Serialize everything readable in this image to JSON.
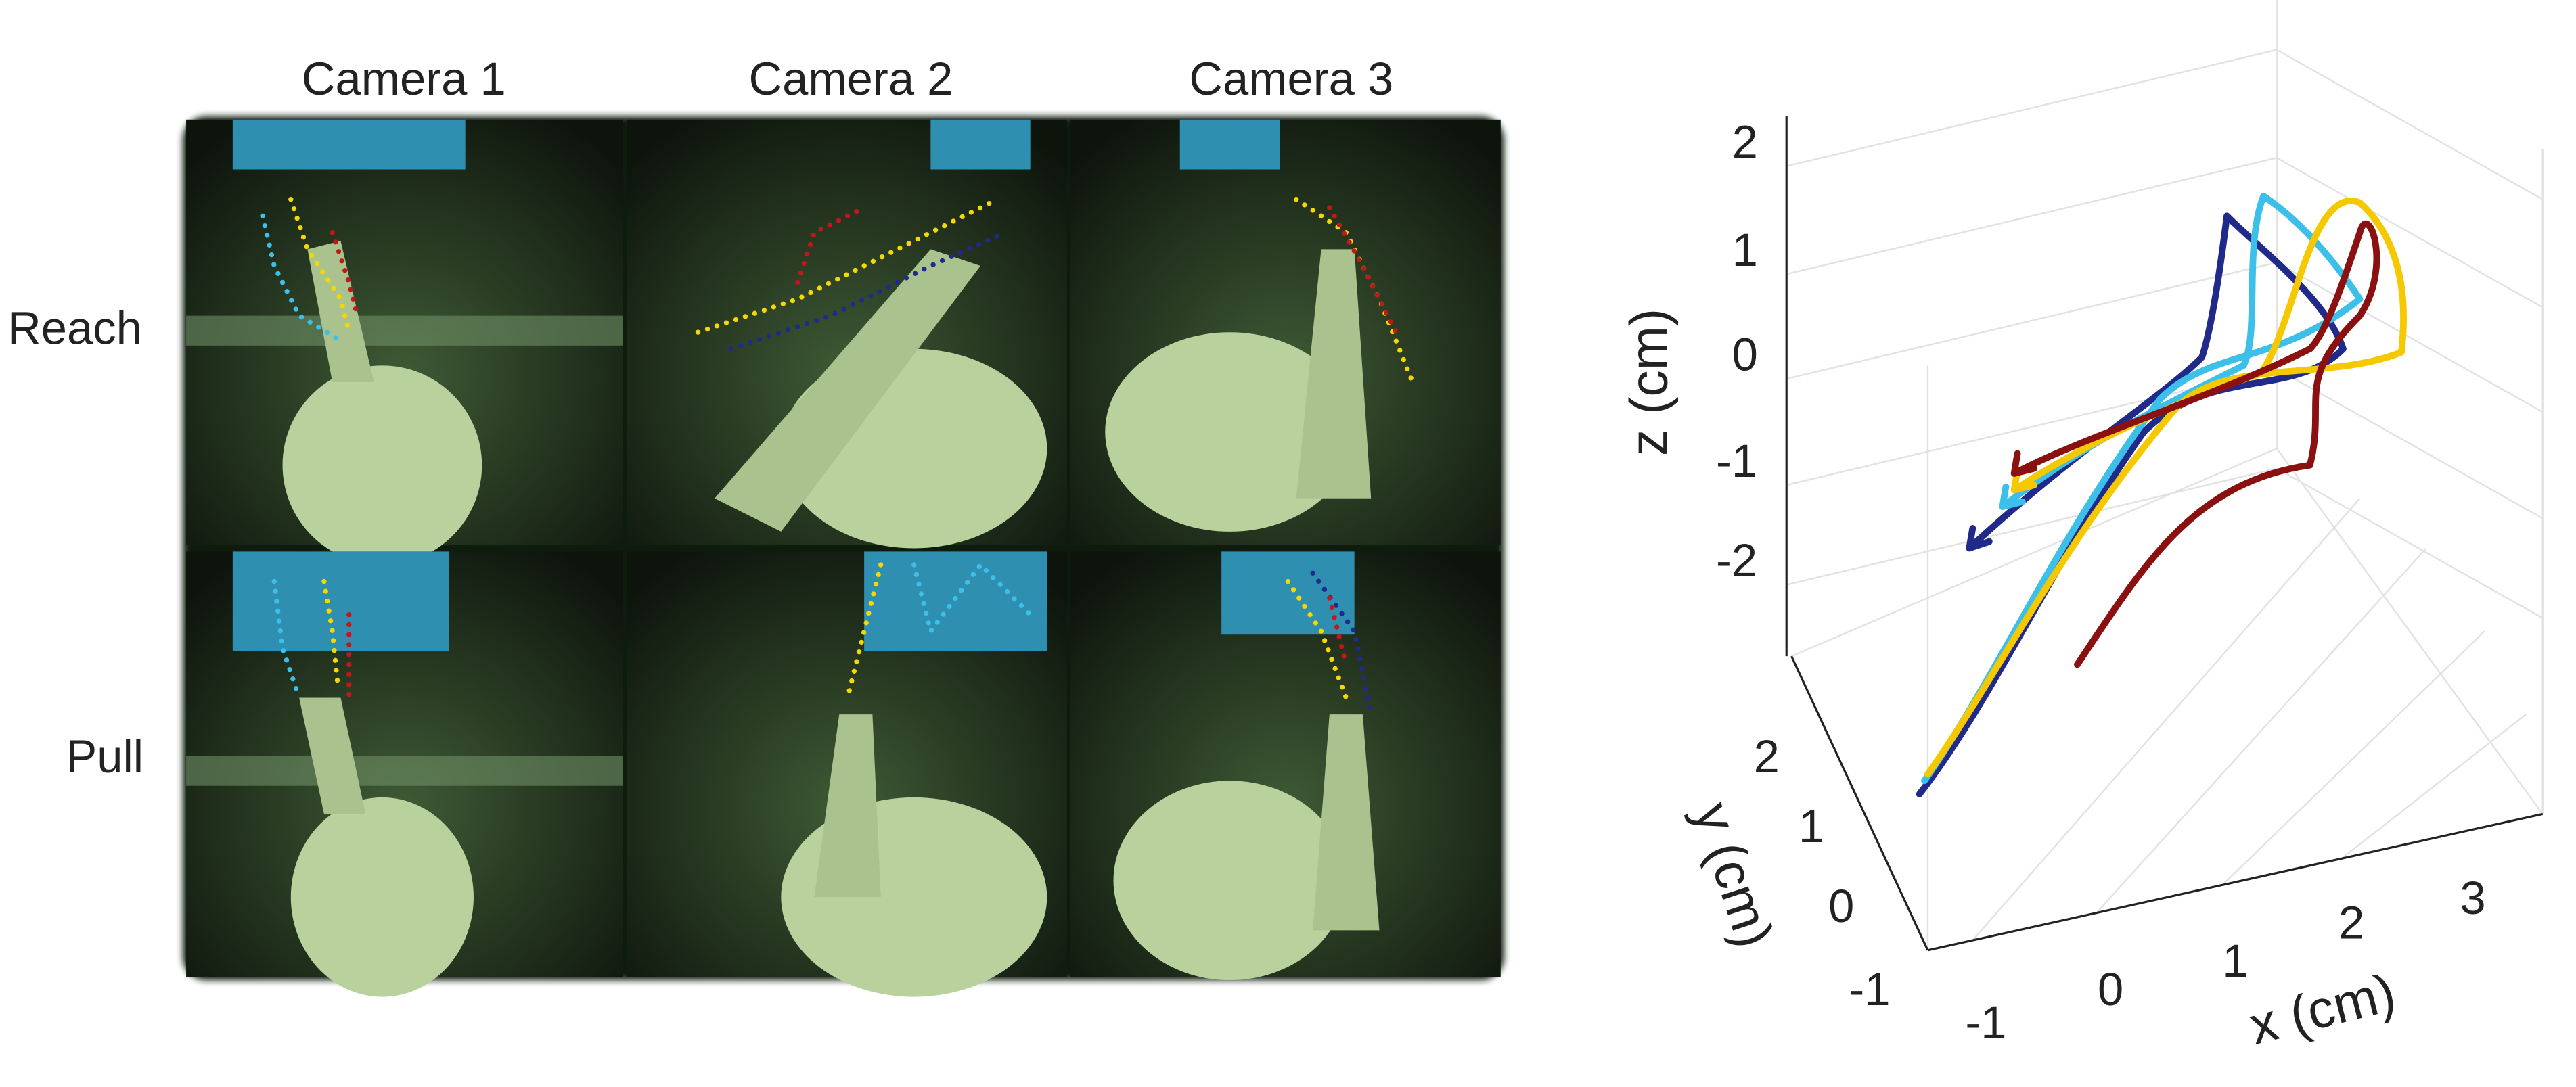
{
  "columns": [
    "Camera 1",
    "Camera 2",
    "Camera 3"
  ],
  "rows": [
    "Reach",
    "Pull"
  ],
  "plot": {
    "x_label": "x (cm)",
    "y_label": "y (cm)",
    "z_label": "z (cm)",
    "x_ticks": [
      "-1",
      "0",
      "1",
      "2",
      "3"
    ],
    "y_ticks": [
      "-1",
      "0",
      "1",
      "2"
    ],
    "z_ticks": [
      "-2",
      "-1",
      "0",
      "1",
      "2"
    ]
  }
}
